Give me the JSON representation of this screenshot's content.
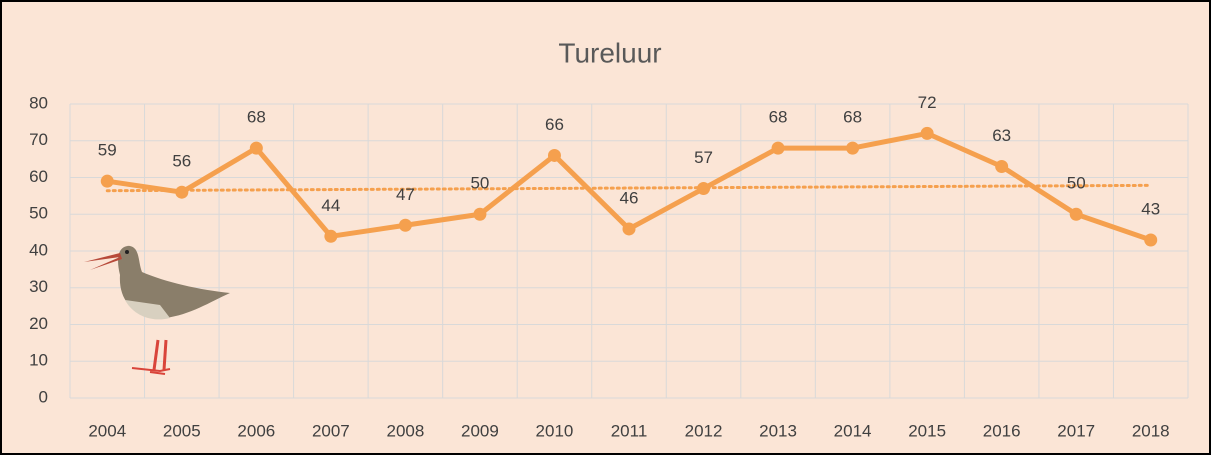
{
  "chart_data": {
    "type": "line",
    "title": "Tureluur",
    "categories": [
      "2004",
      "2005",
      "2006",
      "2007",
      "2008",
      "2009",
      "2010",
      "2011",
      "2012",
      "2013",
      "2014",
      "2015",
      "2016",
      "2017",
      "2018"
    ],
    "series": [
      {
        "name": "Tureluur",
        "color": "#f5a04e",
        "values": [
          59,
          56,
          68,
          44,
          47,
          50,
          66,
          46,
          57,
          68,
          68,
          72,
          63,
          50,
          43
        ]
      }
    ],
    "ylim": [
      0,
      80
    ],
    "yticks": [
      0,
      10,
      20,
      30,
      40,
      50,
      60,
      70,
      80
    ],
    "grid": true,
    "trendline": "linear",
    "data_labels": true
  }
}
